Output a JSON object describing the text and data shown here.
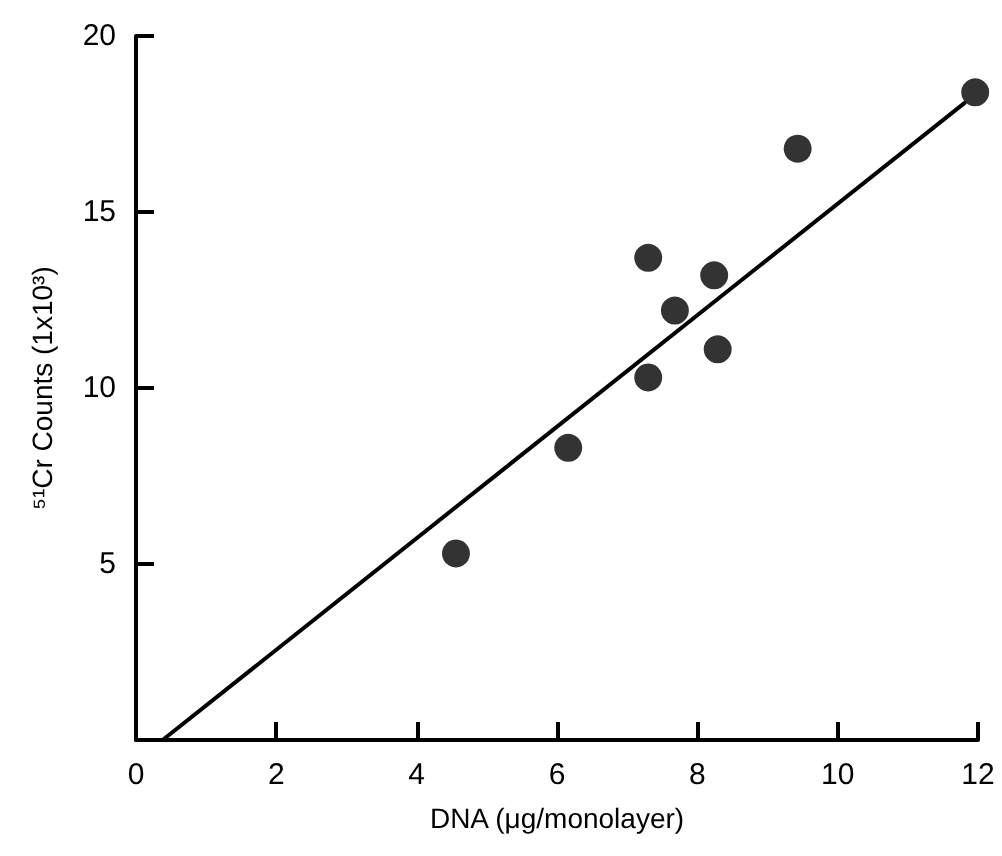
{
  "chart_data": {
    "type": "scatter",
    "xlabel": "DNA (μg/monolayer)",
    "ylabel": "⁵¹Cr Counts (1x10³)",
    "xlim": [
      0,
      12
    ],
    "xticks": [
      0,
      2,
      4,
      6,
      8,
      10,
      12
    ],
    "ylim": [
      0,
      20
    ],
    "yticks": [
      5,
      10,
      15,
      20
    ],
    "grid": false,
    "series": [
      {
        "color": "#000000",
        "marker": "circle",
        "x": [
          4.56,
          6.16,
          7.3,
          7.3,
          7.68,
          8.24,
          8.29,
          9.43,
          11.96
        ],
        "values": [
          5.3,
          8.3,
          10.3,
          13.7,
          12.2,
          13.2,
          11.1,
          16.8,
          18.4
        ]
      },
      {
        "type": "line",
        "color": "#000000",
        "marker": "none",
        "line_style": "solid",
        "x": [
          0.38,
          11.81
        ],
        "values": [
          0,
          18.1
        ]
      }
    ]
  }
}
